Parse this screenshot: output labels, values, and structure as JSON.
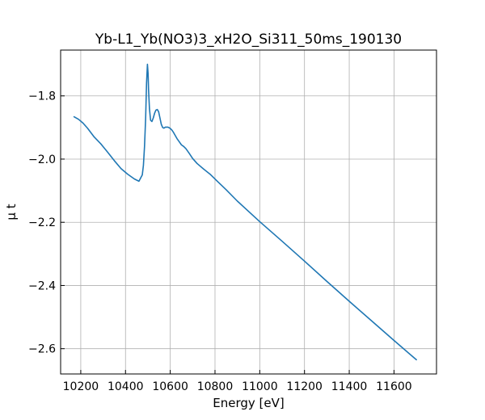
{
  "chart_data": {
    "type": "line",
    "title": "Yb-L1_Yb(NO3)3_xH2O_Si311_50ms_190130",
    "xlabel": "Energy [eV]",
    "ylabel": "μ t",
    "xlim": [
      10110,
      11790
    ],
    "ylim": [
      -2.68,
      -1.655
    ],
    "xticks": [
      10200,
      10400,
      10600,
      10800,
      11000,
      11200,
      11400,
      11600
    ],
    "xtick_labels": [
      "10200",
      "10400",
      "10600",
      "10800",
      "11000",
      "11200",
      "11400",
      "11600"
    ],
    "yticks": [
      -1.8,
      -2.0,
      -2.2,
      -2.4,
      -2.6
    ],
    "ytick_labels": [
      "−1.8",
      "−2.0",
      "−2.2",
      "−2.4",
      "−2.6"
    ],
    "grid": true,
    "line_color": "#1f77b4",
    "series": [
      {
        "x": [
          10170,
          10190,
          10210,
          10230,
          10260,
          10290,
          10320,
          10350,
          10380,
          10410,
          10440,
          10460,
          10475,
          10480,
          10485,
          10490,
          10494,
          10498,
          10501,
          10503,
          10507,
          10512,
          10518,
          10524,
          10530,
          10536,
          10542,
          10548,
          10554,
          10560,
          10566,
          10572,
          10578,
          10584,
          10590,
          10598,
          10606,
          10614,
          10622,
          10630,
          10640,
          10650,
          10660,
          10670,
          10685,
          10700,
          10720,
          10750,
          10780,
          10810,
          10850,
          10900,
          11000,
          11100,
          11200,
          11300,
          11400,
          11500,
          11600,
          11700
        ],
        "y": [
          -1.866,
          -1.874,
          -1.886,
          -1.902,
          -1.93,
          -1.952,
          -1.978,
          -2.005,
          -2.03,
          -2.048,
          -2.063,
          -2.07,
          -2.05,
          -2.02,
          -1.96,
          -1.87,
          -1.76,
          -1.7,
          -1.73,
          -1.78,
          -1.84,
          -1.877,
          -1.881,
          -1.87,
          -1.855,
          -1.845,
          -1.843,
          -1.85,
          -1.87,
          -1.89,
          -1.9,
          -1.902,
          -1.899,
          -1.899,
          -1.899,
          -1.902,
          -1.907,
          -1.915,
          -1.925,
          -1.935,
          -1.945,
          -1.955,
          -1.96,
          -1.967,
          -1.982,
          -1.998,
          -2.014,
          -2.032,
          -2.049,
          -2.07,
          -2.097,
          -2.133,
          -2.198,
          -2.26,
          -2.323,
          -2.387,
          -2.45,
          -2.512,
          -2.574,
          -2.635
        ]
      }
    ]
  }
}
